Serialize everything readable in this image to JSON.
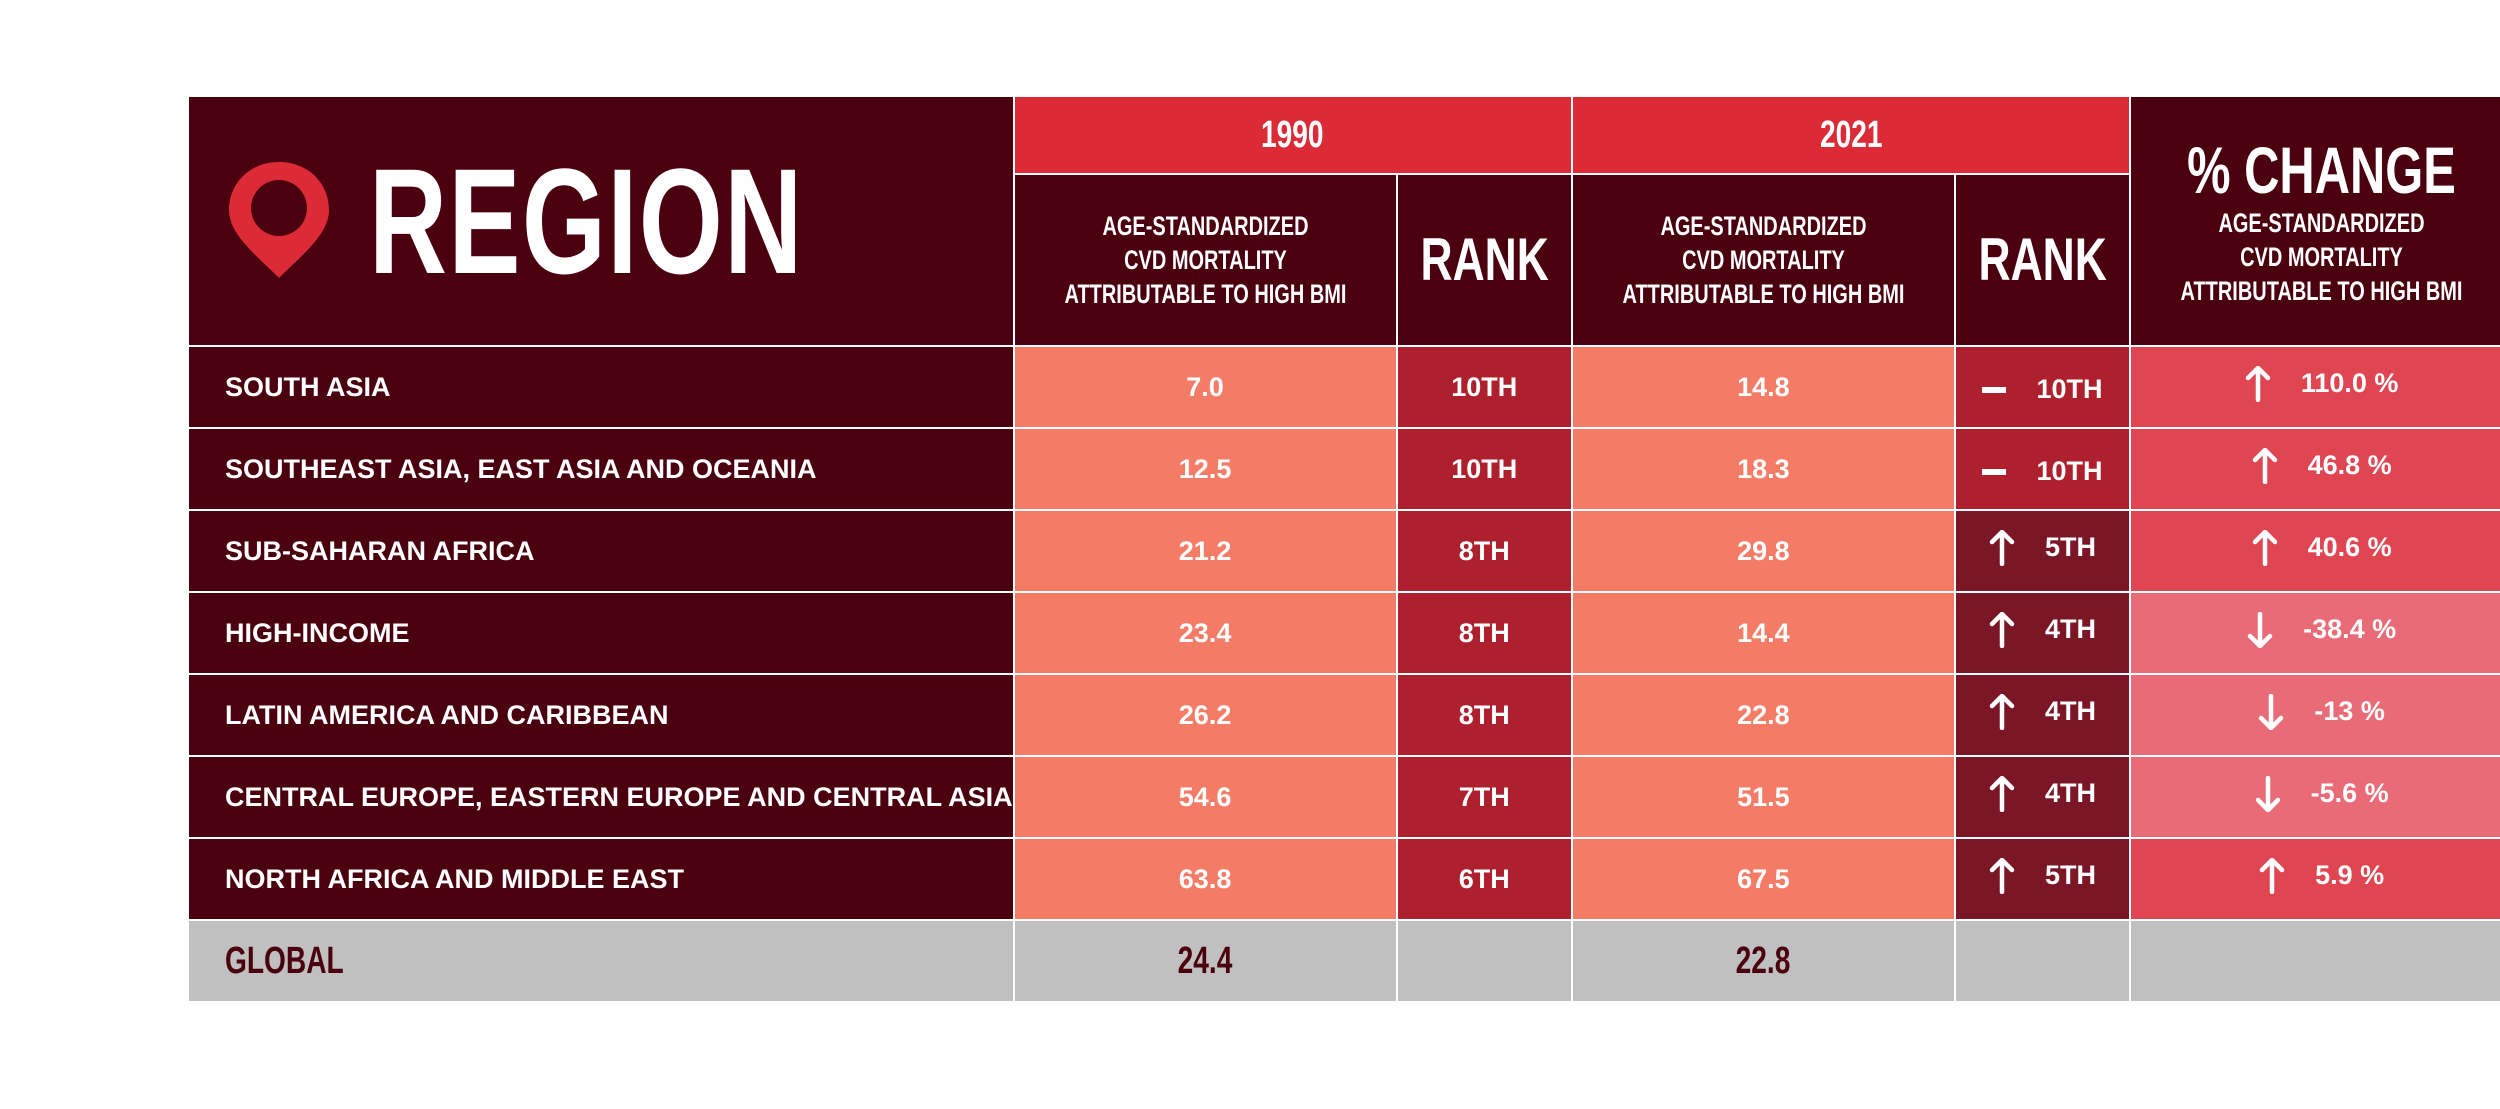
{
  "colors": {
    "dark_maroon": "#4a000e",
    "header_red": "#dc2b36",
    "value_salmon": "#f47c67",
    "rank_red": "#ae202e",
    "rank_improved": "#7b1627",
    "pct_increase": "#e04652",
    "pct_decrease": "#ea6b78",
    "global_gray": "#c0c0c0"
  },
  "header": {
    "region_title": "REGION",
    "region_icon": "map-pin-icon",
    "year_1990": "1990",
    "year_2021": "2021",
    "metric_label_line1": "AGE-STANDARDIZED",
    "metric_label_line2": "CVD MORTALITY",
    "metric_label_line3": "ATTRIBUTABLE TO HIGH BMI",
    "rank_label": "RANK",
    "change_title": "% CHANGE"
  },
  "chart_data": {
    "type": "table",
    "columns": [
      "REGION",
      "1990 AGE-STANDARDIZED CVD MORTALITY ATTRIBUTABLE TO HIGH BMI",
      "1990 RANK",
      "2021 AGE-STANDARDIZED CVD MORTALITY ATTRIBUTABLE TO HIGH BMI",
      "2021 RANK",
      "% CHANGE AGE-STANDARDIZED CVD MORTALITY ATTRIBUTABLE TO HIGH BMI"
    ],
    "rows": [
      {
        "region": "SOUTH ASIA",
        "v1990": "7.0",
        "rank1990": "10TH",
        "v2021": "14.8",
        "rank2021": "10TH",
        "rank_trend": "same",
        "change": "110.0 %",
        "change_dir": "up"
      },
      {
        "region": "SOUTHEAST ASIA, EAST ASIA AND OCEANIA",
        "v1990": "12.5",
        "rank1990": "10TH",
        "v2021": "18.3",
        "rank2021": "10TH",
        "rank_trend": "same",
        "change": "46.8 %",
        "change_dir": "up"
      },
      {
        "region": "SUB-SAHARAN AFRICA",
        "v1990": "21.2",
        "rank1990": "8TH",
        "v2021": "29.8",
        "rank2021": "5TH",
        "rank_trend": "up",
        "change": "40.6 %",
        "change_dir": "up"
      },
      {
        "region": "HIGH-INCOME",
        "v1990": "23.4",
        "rank1990": "8TH",
        "v2021": "14.4",
        "rank2021": "4TH",
        "rank_trend": "up",
        "change": "-38.4 %",
        "change_dir": "down"
      },
      {
        "region": "LATIN AMERICA AND CARIBBEAN",
        "v1990": "26.2",
        "rank1990": "8TH",
        "v2021": "22.8",
        "rank2021": "4TH",
        "rank_trend": "up",
        "change": "-13 %",
        "change_dir": "down"
      },
      {
        "region": "CENTRAL EUROPE, EASTERN EUROPE AND CENTRAL ASIA",
        "v1990": "54.6",
        "rank1990": "7TH",
        "v2021": "51.5",
        "rank2021": "4TH",
        "rank_trend": "up",
        "change": "-5.6 %",
        "change_dir": "down"
      },
      {
        "region": "NORTH AFRICA AND MIDDLE EAST",
        "v1990": "63.8",
        "rank1990": "6TH",
        "v2021": "67.5",
        "rank2021": "5TH",
        "rank_trend": "up",
        "change": "5.9 %",
        "change_dir": "up"
      }
    ],
    "global": {
      "label": "GLOBAL",
      "v1990": "24.4",
      "v2021": "22.8"
    }
  }
}
